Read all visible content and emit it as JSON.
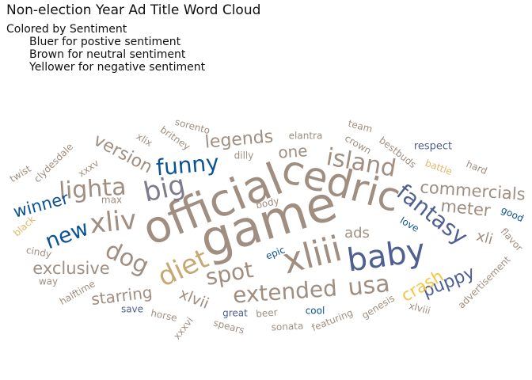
{
  "title": "Non-election Year Ad Title Word Cloud",
  "legend": {
    "heading": "Colored by Sentiment",
    "lines": [
      "Bluer for postive sentiment",
      "Brown for neutral sentiment",
      "Yellower for negative sentiment"
    ]
  },
  "colors": {
    "positive_strong": "#0b5394",
    "positive_mid": "#4f5f91",
    "neutral": "#a08e80",
    "negative_mid": "#c5a872",
    "negative_strong": "#f4c542"
  },
  "chart_data": {
    "type": "wordcloud",
    "color_encoding": "sentiment",
    "words": [
      {
        "text": "game",
        "color": "#a08e80"
      },
      {
        "text": "official",
        "color": "#a08e80"
      },
      {
        "text": "cedric",
        "color": "#a08e80"
      },
      {
        "text": "xliii",
        "color": "#a08e80"
      },
      {
        "text": "baby",
        "color": "#4f5f91"
      },
      {
        "text": "diet",
        "color": "#c5a872"
      },
      {
        "text": "big",
        "color": "#7f7b8c"
      },
      {
        "text": "funny",
        "color": "#0b5394"
      },
      {
        "text": "island",
        "color": "#a08e80"
      },
      {
        "text": "fantasy",
        "color": "#4f5f91"
      },
      {
        "text": "lighta",
        "color": "#a08e80"
      },
      {
        "text": "xliv",
        "color": "#a08e80"
      },
      {
        "text": "extended",
        "color": "#a08e80"
      },
      {
        "text": "spot",
        "color": "#a08e80"
      },
      {
        "text": "dog",
        "color": "#a08e80"
      },
      {
        "text": "usa",
        "color": "#a08e80"
      },
      {
        "text": "new",
        "color": "#0b5394"
      },
      {
        "text": "commercials",
        "color": "#a08e80"
      },
      {
        "text": "version",
        "color": "#a08e80"
      },
      {
        "text": "legends",
        "color": "#a08e80"
      },
      {
        "text": "exclusive",
        "color": "#a08e80"
      },
      {
        "text": "meter",
        "color": "#a08e80"
      },
      {
        "text": "winner",
        "color": "#0b5394"
      },
      {
        "text": "puppy",
        "color": "#4f5f91"
      },
      {
        "text": "crash",
        "color": "#f4c542"
      },
      {
        "text": "starring",
        "color": "#a08e80"
      },
      {
        "text": "xlvii",
        "color": "#a08e80"
      },
      {
        "text": "one",
        "color": "#a08e80"
      },
      {
        "text": "ads",
        "color": "#a08e80"
      },
      {
        "text": "xli",
        "color": "#a08e80"
      },
      {
        "text": "respect",
        "color": "#4f5f91"
      },
      {
        "text": "battle",
        "color": "#e0b96a"
      },
      {
        "text": "hard",
        "color": "#a08e80"
      },
      {
        "text": "good",
        "color": "#0b5394"
      },
      {
        "text": "flavor",
        "color": "#a08e80"
      },
      {
        "text": "love",
        "color": "#0b5394"
      },
      {
        "text": "advertisement",
        "color": "#a08e80"
      },
      {
        "text": "xlviii",
        "color": "#a08e80"
      },
      {
        "text": "genesis",
        "color": "#a08e80"
      },
      {
        "text": "featuring",
        "color": "#a08e80"
      },
      {
        "text": "cool",
        "color": "#0b5394"
      },
      {
        "text": "sonata",
        "color": "#a08e80"
      },
      {
        "text": "beer",
        "color": "#a08e80"
      },
      {
        "text": "great",
        "color": "#4f5f91"
      },
      {
        "text": "spears",
        "color": "#a08e80"
      },
      {
        "text": "xxxvi",
        "color": "#a08e80"
      },
      {
        "text": "horse",
        "color": "#a08e80"
      },
      {
        "text": "save",
        "color": "#4f5f91"
      },
      {
        "text": "halftime",
        "color": "#a08e80"
      },
      {
        "text": "way",
        "color": "#a08e80"
      },
      {
        "text": "cindy",
        "color": "#a08e80"
      },
      {
        "text": "black",
        "color": "#e0b96a"
      },
      {
        "text": "twist",
        "color": "#a08e80"
      },
      {
        "text": "clydesdale",
        "color": "#a08e80"
      },
      {
        "text": "xxxv",
        "color": "#a08e80"
      },
      {
        "text": "xlix",
        "color": "#a08e80"
      },
      {
        "text": "britney",
        "color": "#a08e80"
      },
      {
        "text": "sorento",
        "color": "#a08e80"
      },
      {
        "text": "dilly",
        "color": "#a08e80"
      },
      {
        "text": "elantra",
        "color": "#a08e80"
      },
      {
        "text": "team",
        "color": "#a08e80"
      },
      {
        "text": "crown",
        "color": "#a08e80"
      },
      {
        "text": "bestbuds",
        "color": "#a08e80"
      },
      {
        "text": "max",
        "color": "#a08e80"
      },
      {
        "text": "body",
        "color": "#a08e80"
      },
      {
        "text": "epic",
        "color": "#0b5394"
      }
    ]
  }
}
